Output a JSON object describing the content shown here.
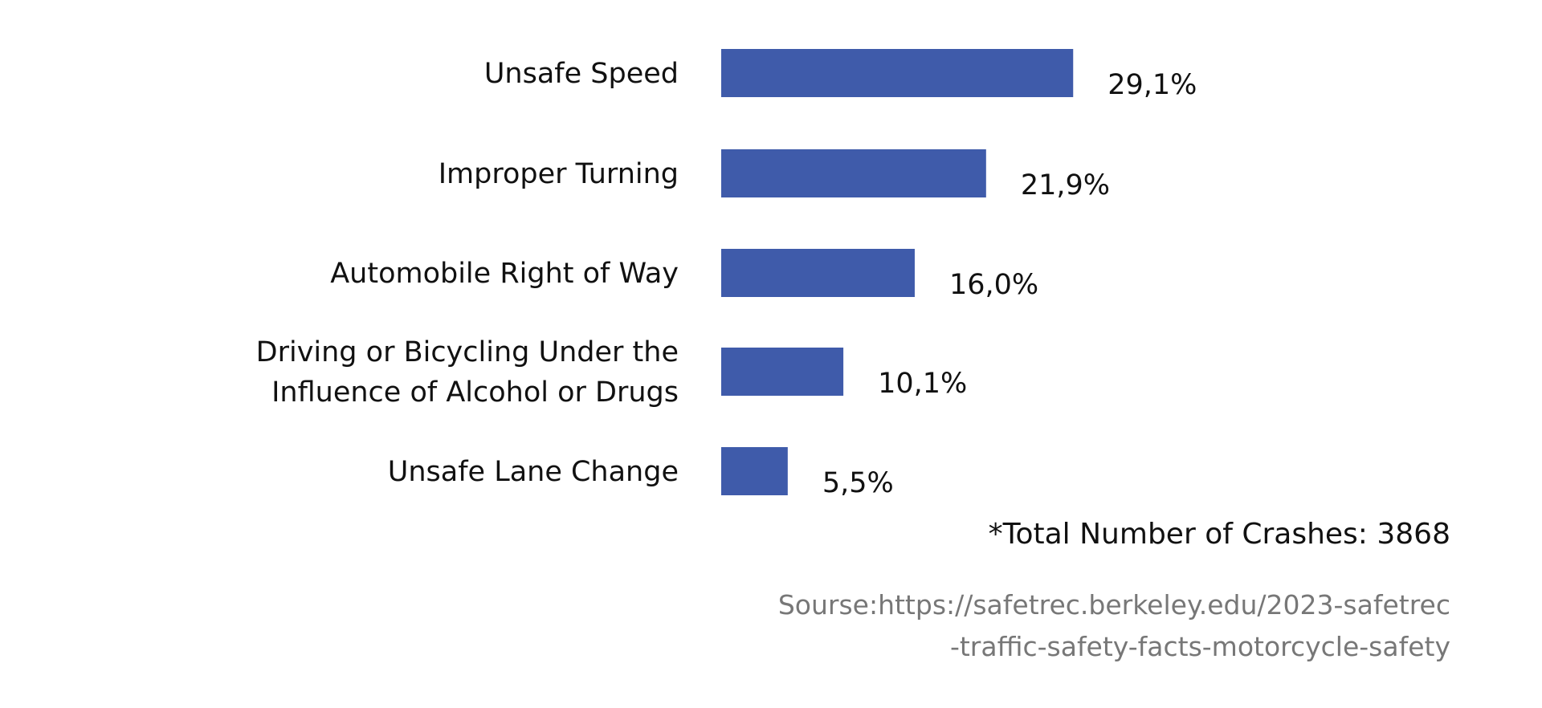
{
  "chart_data": {
    "type": "bar",
    "orientation": "horizontal",
    "categories": [
      [
        "Unsafe Speed"
      ],
      [
        "Improper Turning"
      ],
      [
        "Automobile Right of Way"
      ],
      [
        "Driving or Bicycling Under the",
        "Influence of Alcohol or Drugs"
      ],
      [
        "Unsafe Lane Change"
      ]
    ],
    "values": [
      29.1,
      21.9,
      16.0,
      10.1,
      5.5
    ],
    "data_labels": [
      "29,1%",
      "21,9%",
      "16,0%",
      "10,1%",
      "5,5%"
    ],
    "bar_color": "#3F5BAA",
    "grid": false,
    "xlim": [
      0,
      30
    ]
  },
  "note": "*Total Number of Crashes: 3868",
  "source": [
    "Sourse:https://safetrec.berkeley.edu/2023-safetrec",
    "-traffic-safety-facts-motorcycle-safety"
  ]
}
